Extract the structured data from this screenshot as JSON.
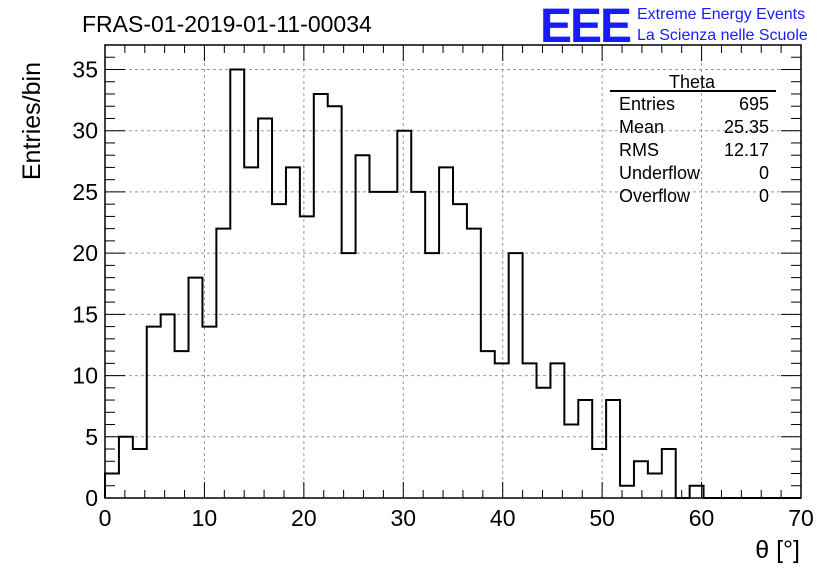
{
  "header": {
    "run_title": "FRAS-01-2019-01-11-00034",
    "logo_mark": "EEE",
    "logo_line1": "Extreme Energy Events",
    "logo_line2": "La Scienza nelle Scuole"
  },
  "colors": {
    "histogram": "#000000",
    "grid": "#999999",
    "logo": "#1a1aff"
  },
  "stats_box": {
    "name": "Theta",
    "rows": [
      {
        "label": "Entries",
        "value": "695"
      },
      {
        "label": "Mean",
        "value": "25.35"
      },
      {
        "label": "RMS",
        "value": "12.17"
      },
      {
        "label": "Underflow",
        "value": "0"
      },
      {
        "label": "Overflow",
        "value": "0"
      }
    ]
  },
  "chart_data": {
    "type": "bar",
    "style": "step-histogram",
    "title": "FRAS-01-2019-01-11-00034",
    "xlabel": "θ [°]",
    "ylabel": "Entries/bin",
    "xlim": [
      0,
      70
    ],
    "ylim": [
      0,
      37
    ],
    "grid": true,
    "bin_width": 1.4,
    "bin_edges_start": 0,
    "values": [
      2,
      5,
      4,
      14,
      15,
      12,
      18,
      14,
      22,
      35,
      27,
      31,
      24,
      27,
      23,
      33,
      32,
      20,
      28,
      25,
      25,
      30,
      25,
      20,
      27,
      24,
      22,
      12,
      11,
      20,
      11,
      9,
      11,
      6,
      8,
      4,
      8,
      1,
      3,
      2,
      4,
      0,
      1,
      0,
      0,
      0,
      0,
      0,
      0,
      0
    ],
    "x_ticks": [
      0,
      10,
      20,
      30,
      40,
      50,
      60,
      70
    ],
    "y_ticks": [
      0,
      5,
      10,
      15,
      20,
      25,
      30,
      35
    ]
  }
}
